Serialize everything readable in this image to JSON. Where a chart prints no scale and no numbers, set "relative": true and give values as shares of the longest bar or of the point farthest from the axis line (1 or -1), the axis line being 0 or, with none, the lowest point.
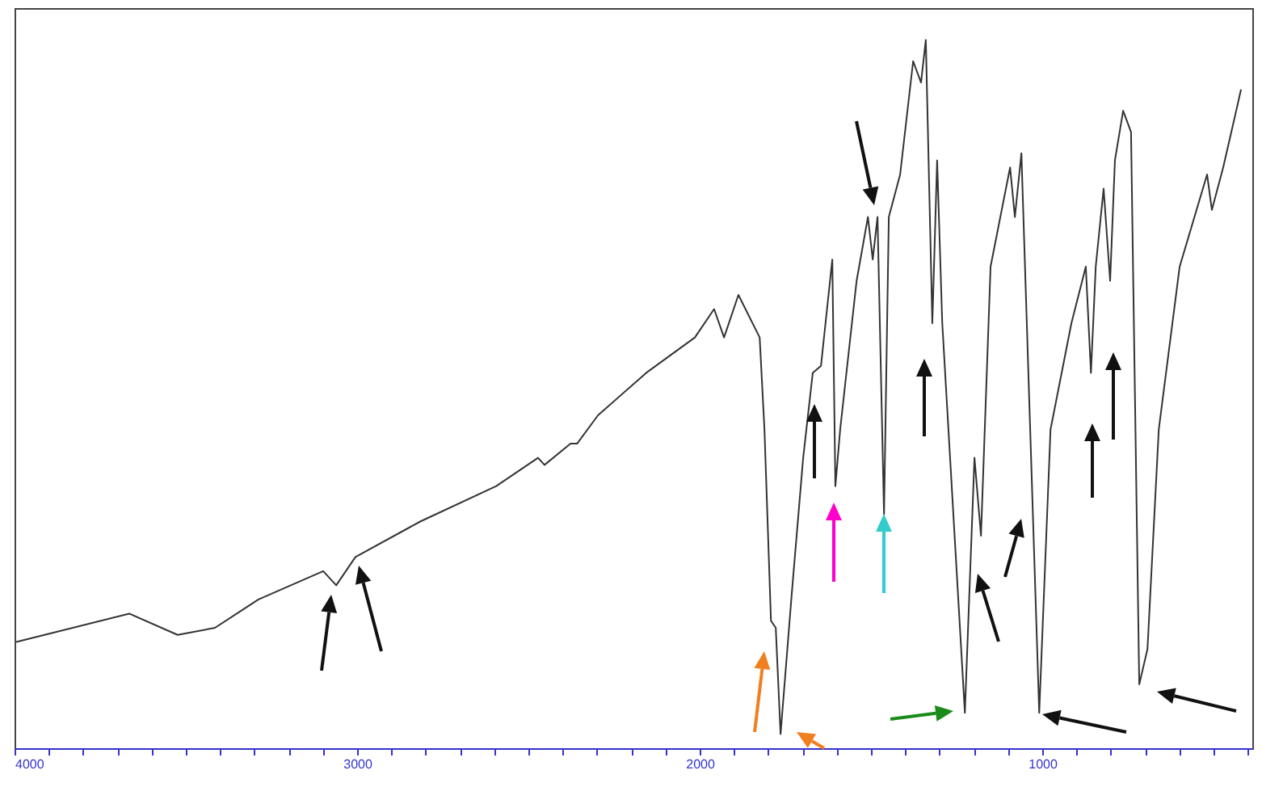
{
  "chart_data": {
    "type": "line",
    "relative": true,
    "xlim": [
      4000,
      387
    ],
    "xticks": [
      4000,
      {
        "value": 3900,
        "label": null
      },
      {
        "value": 3800,
        "label": null
      },
      {
        "value": 3700,
        "label": null
      },
      {
        "value": 3600,
        "label": null
      },
      {
        "value": 3500,
        "label": null
      },
      {
        "value": 3400,
        "label": null
      },
      {
        "value": 3300,
        "label": null
      },
      {
        "value": 3200,
        "label": null
      },
      {
        "value": 3100,
        "label": null
      },
      3000,
      {
        "value": 2900,
        "label": null
      },
      {
        "value": 2800,
        "label": null
      },
      {
        "value": 2700,
        "label": null
      },
      {
        "value": 2600,
        "label": null
      },
      {
        "value": 2500,
        "label": null
      },
      {
        "value": 2400,
        "label": null
      },
      {
        "value": 2300,
        "label": null
      },
      {
        "value": 2200,
        "label": null
      },
      {
        "value": 2100,
        "label": null
      },
      2000,
      {
        "value": 1900,
        "label": null
      },
      {
        "value": 1800,
        "label": null
      },
      {
        "value": 1700,
        "label": null
      },
      {
        "value": 1600,
        "label": null
      },
      {
        "value": 1500,
        "label": null
      },
      {
        "value": 1400,
        "label": null
      },
      {
        "value": 1300,
        "label": null
      },
      {
        "value": 1200,
        "label": null
      },
      {
        "value": 1100,
        "label": null
      },
      1000,
      {
        "value": 900,
        "label": null
      },
      {
        "value": 800,
        "label": null
      },
      {
        "value": 700,
        "label": null
      },
      {
        "value": 600,
        "label": null
      },
      {
        "value": 500,
        "label": null
      },
      {
        "value": 400,
        "label": null
      }
    ],
    "series": [
      {
        "color": "#333333",
        "x": [
          3995,
          3665,
          3524,
          3415,
          3288,
          3099,
          3061,
          3005,
          2816,
          2594,
          2472,
          2453,
          2377,
          2358,
          2297,
          2156,
          2014,
          1958,
          1929,
          1887,
          1825,
          1811,
          1792,
          1778,
          1764,
          1731,
          1698,
          1670,
          1646,
          1613,
          1604,
          1590,
          1542,
          1509,
          1495,
          1481,
          1462,
          1448,
          1415,
          1377,
          1354,
          1340,
          1321,
          1307,
          1292,
          1226,
          1198,
          1179,
          1151,
          1094,
          1080,
          1061,
          1038,
          1009,
          976,
          915,
          873,
          858,
          844,
          821,
          802,
          788,
          764,
          741,
          717,
          693,
          660,
          599,
          519,
          505,
          472,
          434,
          420
        ],
        "values": [
          0.15,
          0.19,
          0.16,
          0.17,
          0.21,
          0.25,
          0.23,
          0.27,
          0.32,
          0.37,
          0.41,
          0.4,
          0.43,
          0.43,
          0.47,
          0.53,
          0.58,
          0.62,
          0.58,
          0.64,
          0.58,
          0.45,
          0.18,
          0.17,
          0.02,
          0.22,
          0.41,
          0.53,
          0.54,
          0.69,
          0.37,
          0.45,
          0.66,
          0.75,
          0.69,
          0.75,
          0.33,
          0.75,
          0.81,
          0.97,
          0.94,
          1.0,
          0.6,
          0.83,
          0.6,
          0.05,
          0.41,
          0.3,
          0.68,
          0.82,
          0.75,
          0.84,
          0.49,
          0.05,
          0.45,
          0.6,
          0.68,
          0.53,
          0.68,
          0.79,
          0.66,
          0.83,
          0.9,
          0.87,
          0.09,
          0.14,
          0.45,
          0.68,
          0.81,
          0.76,
          0.82,
          0.9,
          0.93
        ]
      }
    ]
  }
}
